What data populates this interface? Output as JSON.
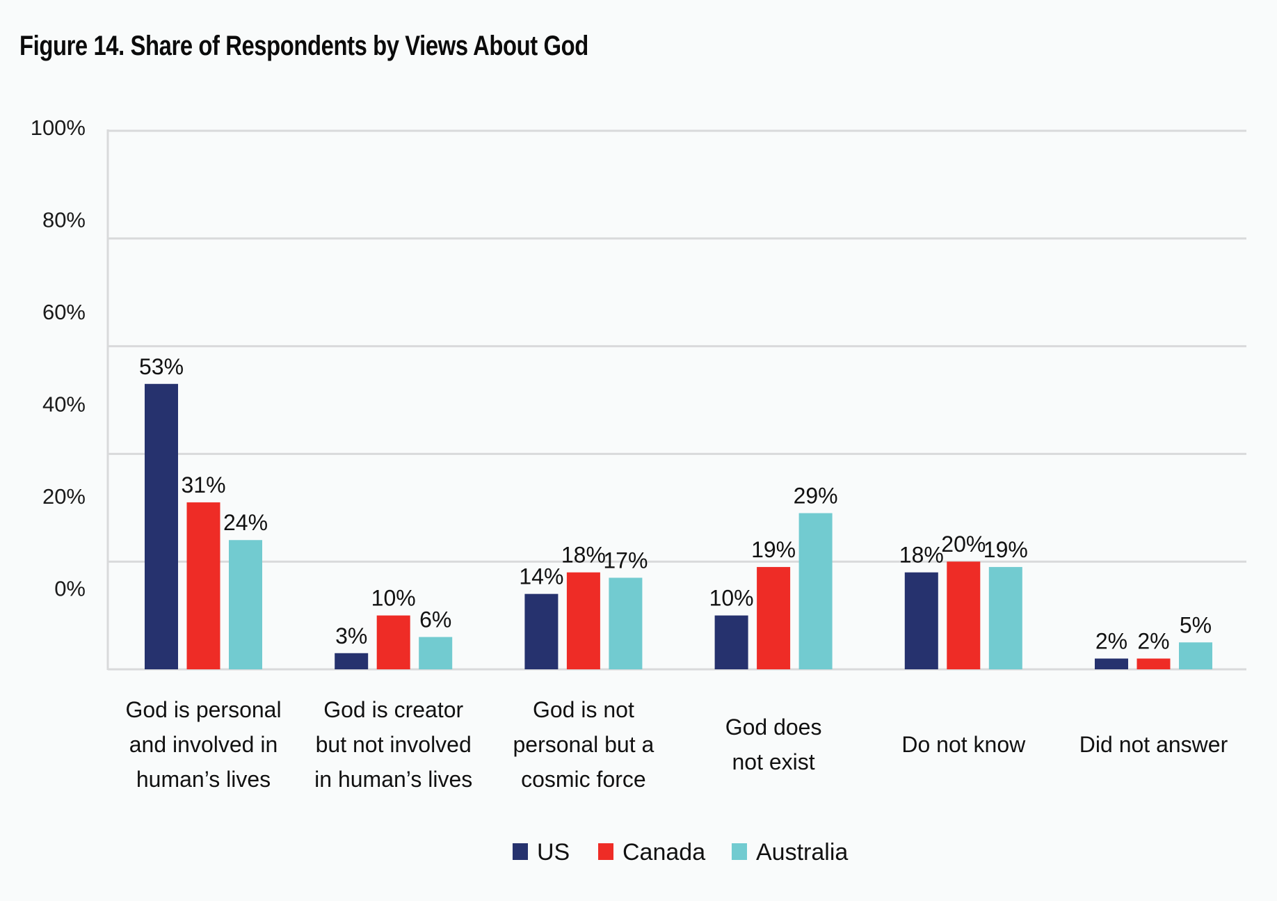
{
  "title": "Figure 14. Share of Respondents by Views About God",
  "chart_data": {
    "type": "bar",
    "title": "Figure 14. Share of Respondents by Views About God",
    "xlabel": "",
    "ylabel": "",
    "ylim": [
      0,
      100
    ],
    "grid": true,
    "y_tick_labels": [
      "100%",
      "80%",
      "60%",
      "40%",
      "20%",
      "0%"
    ],
    "categories": [
      [
        "God is personal",
        "and involved in",
        "human’s lives"
      ],
      [
        "God is creator",
        "but not involved",
        "in human’s lives"
      ],
      [
        "God is not",
        "personal but a",
        "cosmic force"
      ],
      [
        "God does",
        "not exist"
      ],
      [
        "Do not know"
      ],
      [
        "Did not answer"
      ]
    ],
    "series": [
      {
        "name": "US",
        "color": "#26326e",
        "values": [
          53,
          3,
          14,
          10,
          18,
          2
        ],
        "labels": [
          "53%",
          "3%",
          "14%",
          "10%",
          "18%",
          "2%"
        ]
      },
      {
        "name": "Canada",
        "color": "#ee2c26",
        "values": [
          31,
          10,
          18,
          19,
          20,
          2
        ],
        "labels": [
          "31%",
          "10%",
          "18%",
          "19%",
          "20%",
          "2%"
        ]
      },
      {
        "name": "Australia",
        "color": "#72cbd0",
        "values": [
          24,
          6,
          17,
          29,
          19,
          5
        ],
        "labels": [
          "24%",
          "6%",
          "17%",
          "29%",
          "19%",
          "5%"
        ]
      }
    ],
    "legend": {
      "position": "bottom-center",
      "entries": [
        "US",
        "Canada",
        "Australia"
      ]
    }
  }
}
